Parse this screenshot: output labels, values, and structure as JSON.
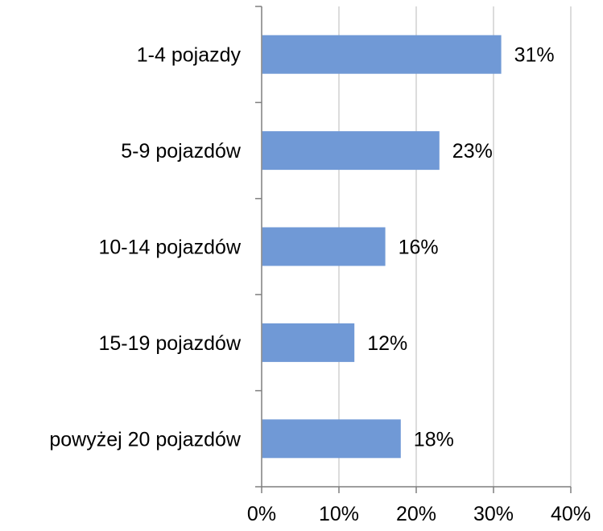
{
  "chart_data": {
    "type": "bar",
    "orientation": "horizontal",
    "title": "",
    "xlabel": "",
    "ylabel": "",
    "categories": [
      "1-4 pojazdy",
      "5-9 pojazdów",
      "10-14 pojazdów",
      "15-19 pojazdów",
      "powyżej 20 pojazdów"
    ],
    "values": [
      31,
      23,
      16,
      12,
      18
    ],
    "value_labels": [
      "31%",
      "23%",
      "16%",
      "12%",
      "18%"
    ],
    "xlim": [
      0,
      40
    ],
    "x_ticks": [
      0,
      10,
      20,
      30,
      40
    ],
    "x_tick_labels": [
      "0%",
      "10%",
      "20%",
      "30%",
      "40%"
    ],
    "grid": true,
    "legend": "none",
    "colors": {
      "bar": "#7099d6",
      "grid": "#d0d0d0",
      "axis": "#7f7f7f",
      "text": "#000000"
    }
  }
}
